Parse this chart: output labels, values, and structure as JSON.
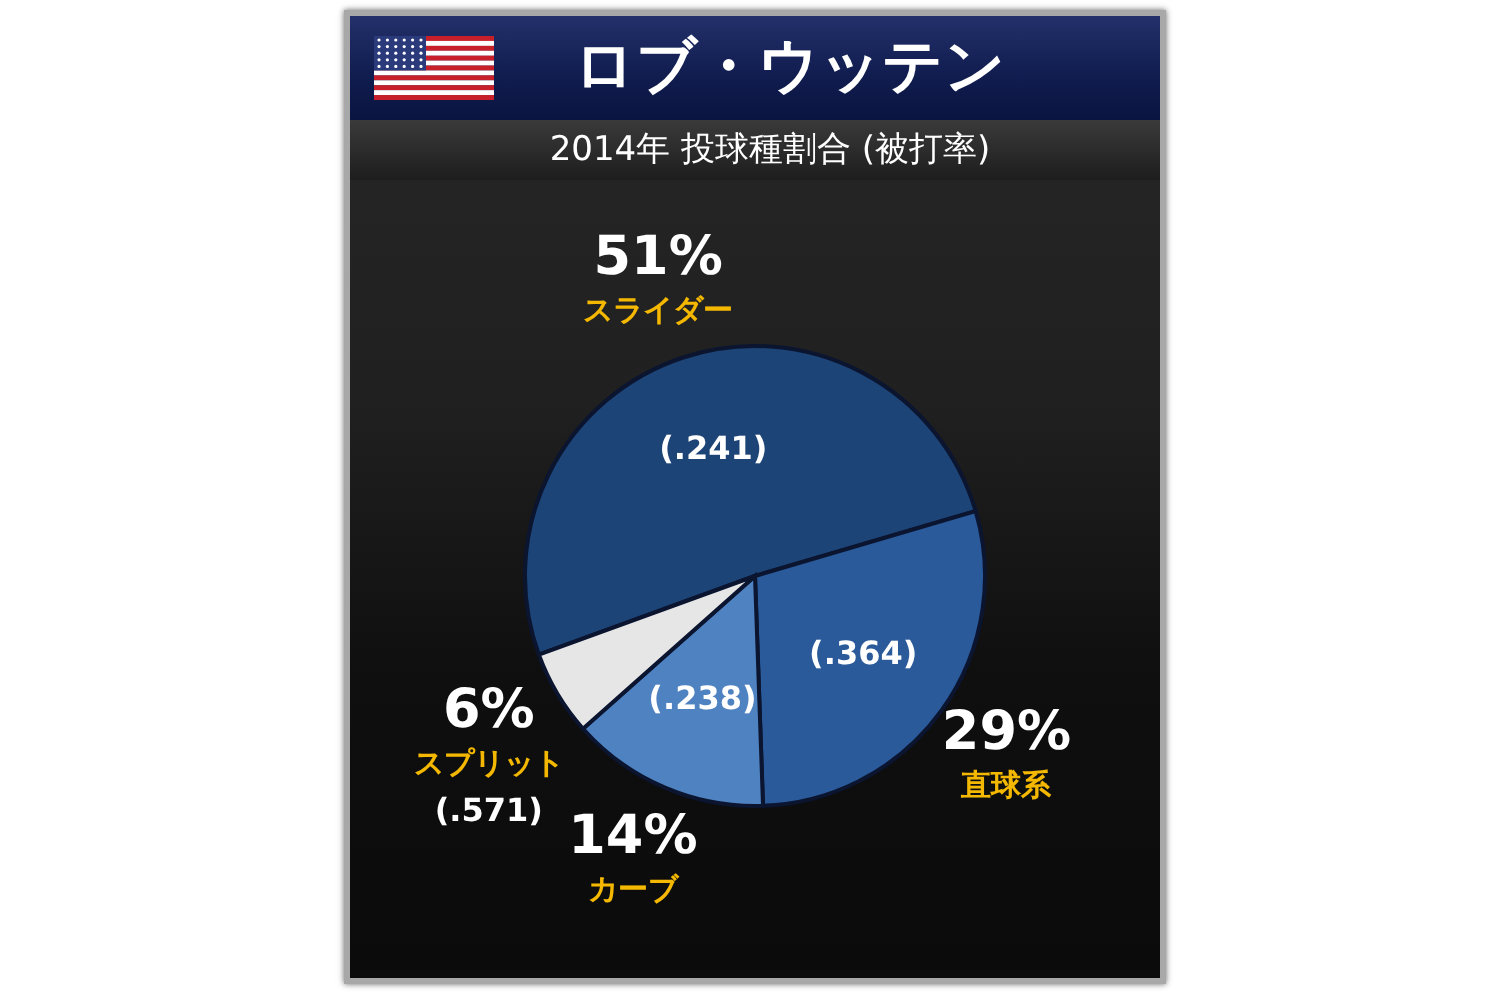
{
  "chart_data": {
    "type": "pie",
    "title": "ロブ・ウッテン",
    "subtitle": "2014年 投球種割合 (被打率)",
    "categories": [
      "スライダー",
      "直球系",
      "カーブ",
      "スプリット"
    ],
    "values": [
      51,
      29,
      14,
      6
    ],
    "colors": [
      "#1d4476",
      "#2a5a9a",
      "#4f82c0",
      "#e6e6e6"
    ],
    "value_labels": [
      "51%",
      "29%",
      "14%",
      "6%"
    ],
    "annotations": [
      {
        "text": "(.241)",
        "x": "スライダー"
      },
      {
        "text": "(.364)",
        "x": "直球系"
      },
      {
        "text": "(.238)",
        "x": "カーブ"
      },
      {
        "text": "(.571)",
        "x": "スプリット"
      }
    ]
  }
}
